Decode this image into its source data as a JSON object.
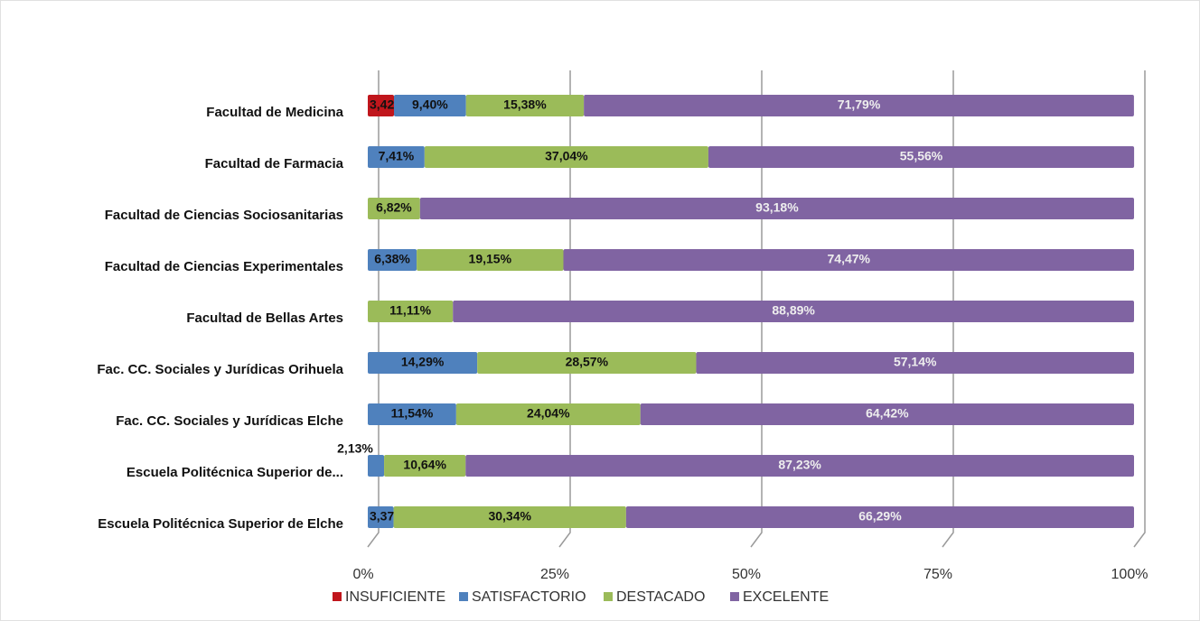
{
  "chart_data": {
    "type": "stacked-bar-horizontal",
    "categories": [
      "Facultad de Medicina",
      "Facultad de Farmacia",
      "Facultad de Ciencias Sociosanitarias",
      "Facultad de Ciencias Experimentales",
      "Facultad de Bellas Artes",
      "Fac. CC. Sociales y Jurídicas Orihuela",
      "Fac. CC. Sociales y Jurídicas Elche",
      "Escuela Politécnica Superior de...",
      "Escuela Politécnica Superior de Elche"
    ],
    "series": [
      {
        "name": "INSUFICIENTE",
        "color": "#c0161c",
        "values": [
          3.42,
          null,
          null,
          null,
          null,
          null,
          null,
          null,
          null
        ],
        "value_labels": [
          "3,42%",
          null,
          null,
          null,
          null,
          null,
          null,
          null,
          null
        ]
      },
      {
        "name": "SATISFACTORIO",
        "color": "#4f81bd",
        "values": [
          9.4,
          7.41,
          null,
          6.38,
          null,
          14.29,
          11.54,
          2.13,
          3.37
        ],
        "value_labels": [
          "9,40%",
          "7,41%",
          null,
          "6,38%",
          null,
          "14,29%",
          "11,54%",
          "2,13%",
          "3,37%"
        ]
      },
      {
        "name": "DESTACADO",
        "color": "#9bbb59",
        "values": [
          15.38,
          37.04,
          6.82,
          19.15,
          11.11,
          28.57,
          24.04,
          10.64,
          30.34
        ],
        "value_labels": [
          "15,38%",
          "37,04%",
          "6,82%",
          "19,15%",
          "11,11%",
          "28,57%",
          "24,04%",
          "10,64%",
          "30,34%"
        ]
      },
      {
        "name": "EXCELENTE",
        "color": "#8064a2",
        "values": [
          71.79,
          55.56,
          93.18,
          74.47,
          88.89,
          57.14,
          64.42,
          87.23,
          66.29
        ],
        "value_labels": [
          "71,79%",
          "55,56%",
          "93,18%",
          "74,47%",
          "88,89%",
          "57,14%",
          "64,42%",
          "87,23%",
          "66,29%"
        ]
      }
    ],
    "xlim": [
      0,
      100
    ],
    "xticks": [
      {
        "value": 0,
        "label": "0%"
      },
      {
        "value": 25,
        "label": "25%"
      },
      {
        "value": 50,
        "label": "50%"
      },
      {
        "value": 75,
        "label": "75%"
      },
      {
        "value": 100,
        "label": "100%"
      }
    ],
    "grid": true,
    "legend": "bottom"
  }
}
